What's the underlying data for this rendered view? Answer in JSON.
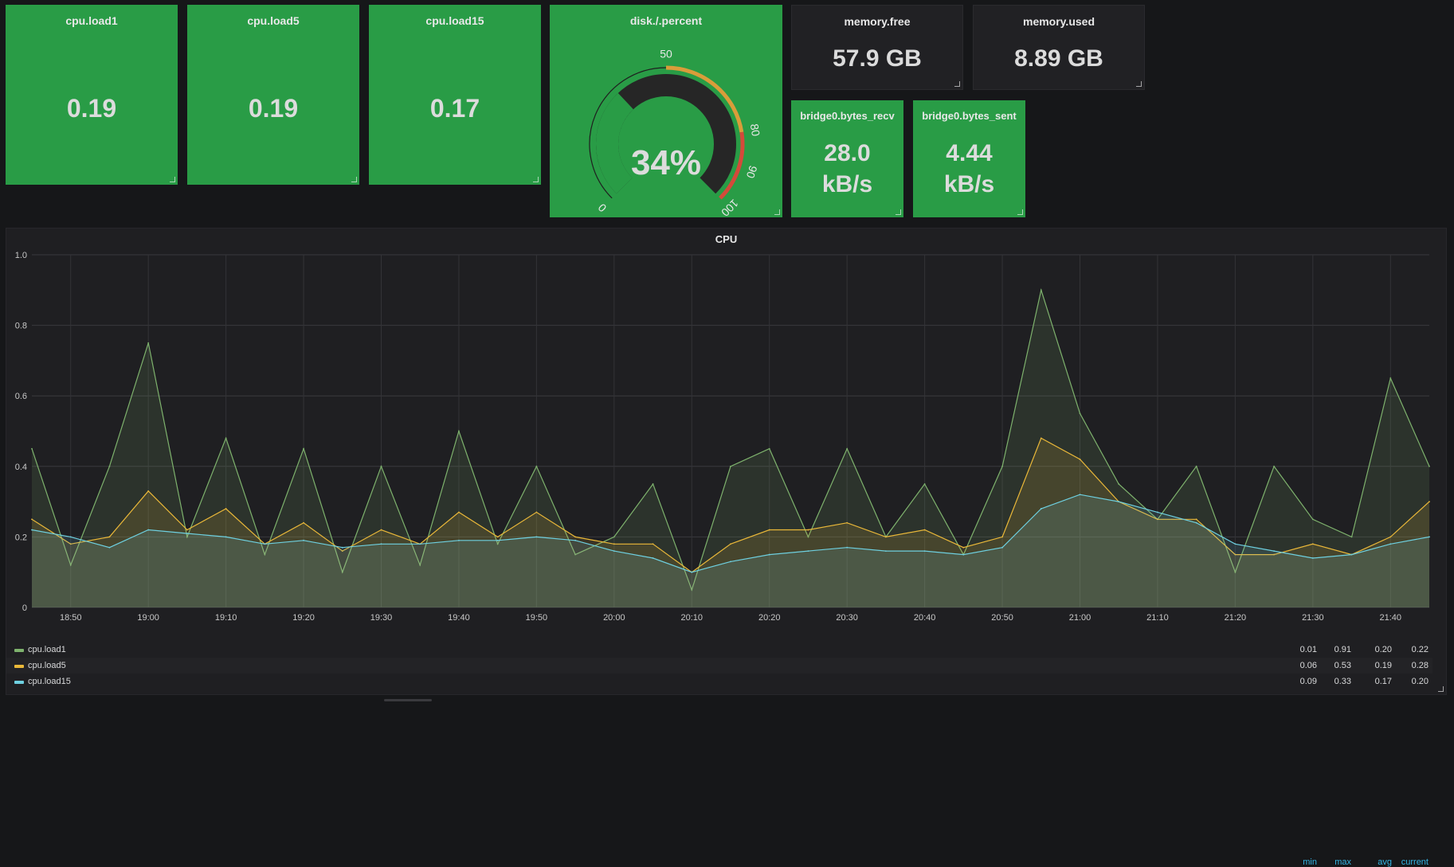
{
  "stats": [
    {
      "title": "cpu.load1",
      "value": "0.19"
    },
    {
      "title": "cpu.load5",
      "value": "0.19"
    },
    {
      "title": "cpu.load15",
      "value": "0.17"
    }
  ],
  "gauge": {
    "title": "disk./.percent",
    "value": "34%",
    "percent": 34,
    "min_label": "0",
    "ticks": [
      "50",
      "80",
      "90",
      "100"
    ],
    "threshold_colors": {
      "ok": "#299c46",
      "warn": "#d99d3a",
      "crit": "#d44a3a"
    }
  },
  "memory": [
    {
      "title": "memory.free",
      "value": "57.9 GB"
    },
    {
      "title": "memory.used",
      "value": "8.89 GB"
    }
  ],
  "bridge": [
    {
      "title": "bridge0.bytes_recv",
      "value_line1": "28.0",
      "value_line2": "kB/s"
    },
    {
      "title": "bridge0.bytes_sent",
      "value_line1": "4.44",
      "value_line2": "kB/s"
    }
  ],
  "graph": {
    "title": "CPU",
    "legend_headers": [
      "min",
      "max",
      "avg",
      "current"
    ],
    "legend": [
      {
        "name": "cpu.load1",
        "color": "#7eb26d",
        "min": "0.01",
        "max": "0.91",
        "avg": "0.20",
        "current": "0.22"
      },
      {
        "name": "cpu.load5",
        "color": "#eab839",
        "min": "0.06",
        "max": "0.53",
        "avg": "0.19",
        "current": "0.28"
      },
      {
        "name": "cpu.load15",
        "color": "#6ed0e0",
        "min": "0.09",
        "max": "0.33",
        "avg": "0.17",
        "current": "0.20"
      }
    ]
  },
  "chart_data": {
    "type": "line",
    "title": "CPU",
    "ylim": [
      0,
      1.0
    ],
    "y_ticks": [
      "0",
      "0.2",
      "0.4",
      "0.6",
      "0.8",
      "1.0"
    ],
    "x_ticks": [
      "18:50",
      "19:00",
      "19:10",
      "19:20",
      "19:30",
      "19:40",
      "19:50",
      "20:00",
      "20:10",
      "20:20",
      "20:30",
      "20:40",
      "20:50",
      "21:00",
      "21:10",
      "21:20",
      "21:30",
      "21:40"
    ],
    "xlim": [
      "18:45",
      "21:45"
    ],
    "grid": true,
    "legend": "bottom-left",
    "series": [
      {
        "name": "cpu.load1",
        "x": [
          "18:45",
          "18:50",
          "18:55",
          "19:00",
          "19:05",
          "19:10",
          "19:15",
          "19:20",
          "19:25",
          "19:30",
          "19:35",
          "19:40",
          "19:45",
          "19:50",
          "19:55",
          "20:00",
          "20:05",
          "20:10",
          "20:15",
          "20:20",
          "20:25",
          "20:30",
          "20:35",
          "20:40",
          "20:45",
          "20:50",
          "20:55",
          "21:00",
          "21:05",
          "21:10",
          "21:15",
          "21:20",
          "21:25",
          "21:30",
          "21:35",
          "21:40",
          "21:45"
        ],
        "values": [
          0.45,
          0.12,
          0.4,
          0.75,
          0.2,
          0.48,
          0.15,
          0.45,
          0.1,
          0.4,
          0.12,
          0.5,
          0.18,
          0.4,
          0.15,
          0.2,
          0.35,
          0.05,
          0.4,
          0.45,
          0.2,
          0.45,
          0.2,
          0.35,
          0.15,
          0.4,
          0.9,
          0.55,
          0.35,
          0.25,
          0.4,
          0.1,
          0.4,
          0.25,
          0.2,
          0.65,
          0.4
        ]
      },
      {
        "name": "cpu.load5",
        "x": [
          "18:45",
          "18:50",
          "18:55",
          "19:00",
          "19:05",
          "19:10",
          "19:15",
          "19:20",
          "19:25",
          "19:30",
          "19:35",
          "19:40",
          "19:45",
          "19:50",
          "19:55",
          "20:00",
          "20:05",
          "20:10",
          "20:15",
          "20:20",
          "20:25",
          "20:30",
          "20:35",
          "20:40",
          "20:45",
          "20:50",
          "20:55",
          "21:00",
          "21:05",
          "21:10",
          "21:15",
          "21:20",
          "21:25",
          "21:30",
          "21:35",
          "21:40",
          "21:45"
        ],
        "values": [
          0.25,
          0.18,
          0.2,
          0.33,
          0.22,
          0.28,
          0.18,
          0.24,
          0.16,
          0.22,
          0.18,
          0.27,
          0.2,
          0.27,
          0.2,
          0.18,
          0.18,
          0.1,
          0.18,
          0.22,
          0.22,
          0.24,
          0.2,
          0.22,
          0.17,
          0.2,
          0.48,
          0.42,
          0.3,
          0.25,
          0.25,
          0.15,
          0.15,
          0.18,
          0.15,
          0.2,
          0.3
        ]
      },
      {
        "name": "cpu.load15",
        "x": [
          "18:45",
          "18:50",
          "18:55",
          "19:00",
          "19:05",
          "19:10",
          "19:15",
          "19:20",
          "19:25",
          "19:30",
          "19:35",
          "19:40",
          "19:45",
          "19:50",
          "19:55",
          "20:00",
          "20:05",
          "20:10",
          "20:15",
          "20:20",
          "20:25",
          "20:30",
          "20:35",
          "20:40",
          "20:45",
          "20:50",
          "20:55",
          "21:00",
          "21:05",
          "21:10",
          "21:15",
          "21:20",
          "21:25",
          "21:30",
          "21:35",
          "21:40",
          "21:45"
        ],
        "values": [
          0.22,
          0.2,
          0.17,
          0.22,
          0.21,
          0.2,
          0.18,
          0.19,
          0.17,
          0.18,
          0.18,
          0.19,
          0.19,
          0.2,
          0.19,
          0.16,
          0.14,
          0.1,
          0.13,
          0.15,
          0.16,
          0.17,
          0.16,
          0.16,
          0.15,
          0.17,
          0.28,
          0.32,
          0.3,
          0.27,
          0.24,
          0.18,
          0.16,
          0.14,
          0.15,
          0.18,
          0.2
        ]
      }
    ]
  }
}
